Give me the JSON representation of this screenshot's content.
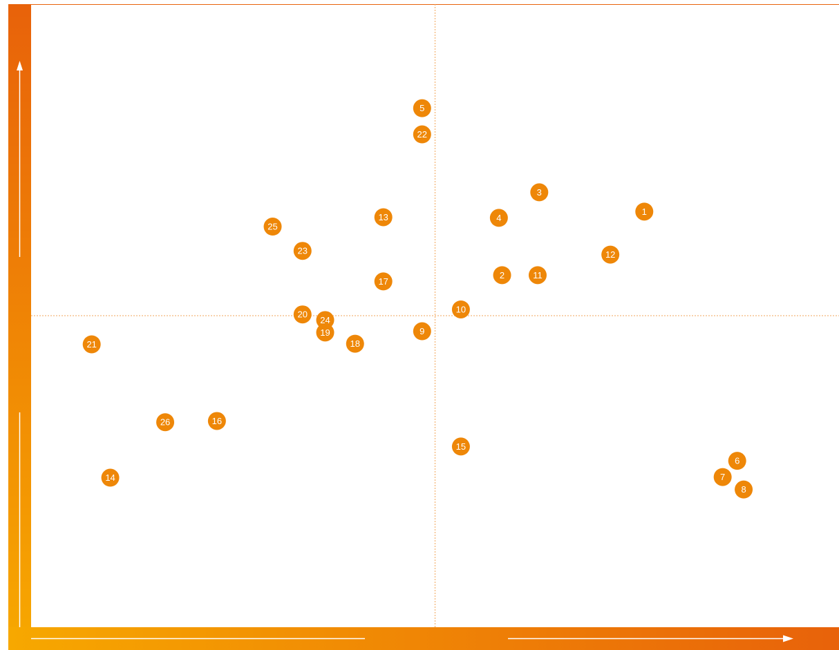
{
  "chart_data": {
    "type": "scatter",
    "title": "",
    "xlabel": "",
    "ylabel": "",
    "xlim": [
      0,
      100
    ],
    "ylim": [
      0,
      100
    ],
    "divider_x": 50,
    "divider_y": 50,
    "grid": false,
    "legend": "none",
    "points": [
      {
        "label": "1",
        "x": 75.9,
        "y": 66.7
      },
      {
        "label": "2",
        "x": 58.3,
        "y": 56.5
      },
      {
        "label": "3",
        "x": 62.9,
        "y": 69.8
      },
      {
        "label": "4",
        "x": 57.9,
        "y": 65.7
      },
      {
        "label": "5",
        "x": 48.4,
        "y": 83.3
      },
      {
        "label": "6",
        "x": 87.4,
        "y": 26.7
      },
      {
        "label": "7",
        "x": 85.6,
        "y": 24.1
      },
      {
        "label": "8",
        "x": 88.2,
        "y": 22.1
      },
      {
        "label": "9",
        "x": 48.4,
        "y": 47.5
      },
      {
        "label": "10",
        "x": 53.2,
        "y": 51.0
      },
      {
        "label": "11",
        "x": 62.7,
        "y": 56.5
      },
      {
        "label": "12",
        "x": 71.7,
        "y": 59.8
      },
      {
        "label": "13",
        "x": 43.6,
        "y": 65.8
      },
      {
        "label": "14",
        "x": 9.8,
        "y": 24.0
      },
      {
        "label": "15",
        "x": 53.2,
        "y": 29.0
      },
      {
        "label": "16",
        "x": 23.0,
        "y": 33.1
      },
      {
        "label": "17",
        "x": 43.6,
        "y": 55.5
      },
      {
        "label": "18",
        "x": 40.1,
        "y": 45.5
      },
      {
        "label": "19",
        "x": 36.4,
        "y": 47.3
      },
      {
        "label": "20",
        "x": 33.6,
        "y": 50.2
      },
      {
        "label": "21",
        "x": 7.5,
        "y": 45.4
      },
      {
        "label": "22",
        "x": 48.4,
        "y": 79.1
      },
      {
        "label": "23",
        "x": 33.6,
        "y": 60.4
      },
      {
        "label": "24",
        "x": 36.4,
        "y": 49.3
      },
      {
        "label": "25",
        "x": 29.9,
        "y": 64.3
      },
      {
        "label": "26",
        "x": 16.6,
        "y": 32.9
      }
    ]
  },
  "colors": {
    "marker": "#ee8708",
    "marker_text": "#ffffff",
    "divider": "#f2a65a",
    "bar_start": "#f7a800",
    "bar_end": "#e8620a",
    "arrow": "#ffffff"
  }
}
